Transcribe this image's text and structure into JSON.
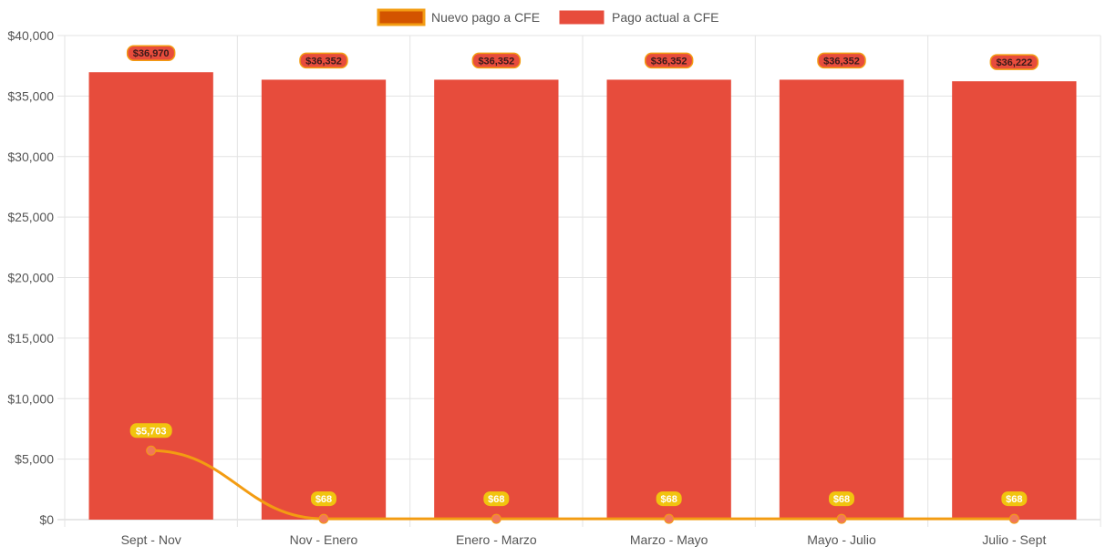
{
  "chart_data": {
    "type": "bar",
    "categories": [
      "Sept - Nov",
      "Nov - Enero",
      "Enero - Marzo",
      "Marzo - Mayo",
      "Mayo - Julio",
      "Julio - Sept"
    ],
    "series": [
      {
        "name": "Nuevo pago a CFE",
        "type": "line",
        "values": [
          5703,
          68,
          68,
          68,
          68,
          68
        ],
        "labels": [
          "$5,703",
          "$68",
          "$68",
          "$68",
          "$68",
          "$68"
        ],
        "color": "#f39c12",
        "point_color": "#f0775a",
        "legend_fill": "#d35400",
        "legend_border": "#f39c12"
      },
      {
        "name": "Pago actual a CFE",
        "type": "bar",
        "values": [
          36970,
          36352,
          36352,
          36352,
          36352,
          36222
        ],
        "labels": [
          "$36,970",
          "$36,352",
          "$36,352",
          "$36,352",
          "$36,352",
          "$36,222"
        ],
        "color": "#e74c3c",
        "label_border": "#f39c12"
      }
    ],
    "yticks": [
      "$0",
      "$5,000",
      "$10,000",
      "$15,000",
      "$20,000",
      "$25,000",
      "$30,000",
      "$35,000",
      "$40,000"
    ],
    "ylim": [
      0,
      40000
    ],
    "ystep": 5000,
    "grid": true,
    "legend_position": "top-center",
    "line_label_bg": "#f1c40f"
  }
}
